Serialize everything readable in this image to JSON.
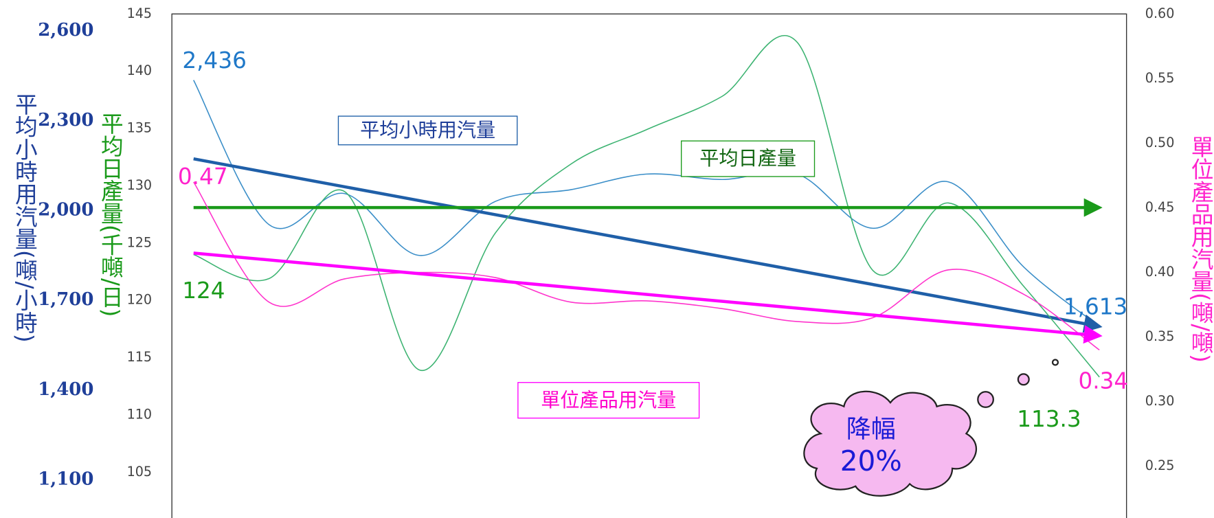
{
  "chart_data": {
    "type": "line",
    "categories": [
      null,
      null,
      null,
      null,
      null,
      null,
      null,
      null,
      null,
      null,
      null,
      null,
      null
    ],
    "ylabel": "平均小時用汽量(噸/小時)",
    "ylim": [
      973,
      2657
    ],
    "yticks": [
      {
        "value": 2600,
        "label": "2,600"
      },
      {
        "value": 2300,
        "label": "2,300"
      },
      {
        "value": 2000,
        "label": "2,000"
      },
      {
        "value": 1700,
        "label": "1,700"
      },
      {
        "value": 1400,
        "label": "1,400"
      },
      {
        "value": 1100,
        "label": "1,100"
      }
    ],
    "y3label": "平均日產量(千噸/日)",
    "y3lim": [
      101,
      145
    ],
    "y3ticks": [
      145,
      140,
      135,
      130,
      125,
      120,
      115,
      110,
      105
    ],
    "y2label": "單位產品用汽量(噸/噸)",
    "y2lim": [
      0.21,
      0.6
    ],
    "y2ticks": [
      {
        "value": 0.6,
        "label": "0.60"
      },
      0.55,
      {
        "value": 0.5,
        "label": "0.50"
      },
      0.45,
      {
        "value": 0.4,
        "label": "0.40"
      },
      0.35,
      {
        "value": 0.3,
        "label": "0.30"
      },
      0.25
    ],
    "series": [
      {
        "name": "平均小時用汽量",
        "axis": "y",
        "color": "#3a8ec8",
        "trend_color": "#1f5fa8",
        "values": [
          2436,
          1953,
          2057,
          1850,
          2031,
          2070,
          2122,
          2104,
          2122,
          1941,
          2096,
          1811,
          1613
        ],
        "value_labels": [
          "2,436",
          null,
          null,
          null,
          null,
          null,
          null,
          null,
          null,
          null,
          null,
          null,
          "1,613"
        ],
        "trend": [
          2173,
          1613
        ]
      },
      {
        "name": "平均日產量",
        "axis": "y3",
        "color": "#3cb371",
        "trend_color": "#1a9a1a",
        "values": [
          124,
          121.9,
          129.5,
          113.9,
          125.9,
          131.9,
          134.9,
          137.8,
          142.5,
          122.6,
          128.5,
          121.2,
          113.3
        ],
        "value_labels": [
          "124",
          null,
          null,
          null,
          null,
          null,
          null,
          null,
          null,
          null,
          null,
          null,
          "113.3"
        ],
        "trend": [
          128.1,
          128.1
        ]
      },
      {
        "name": "單位產品用汽量",
        "axis": "y2",
        "color": "#ff33cc",
        "trend_color": "#ff00ff",
        "values": [
          0.47,
          0.377,
          0.395,
          0.4,
          0.396,
          0.377,
          0.378,
          0.372,
          0.362,
          0.365,
          0.402,
          0.383,
          0.34
        ],
        "value_labels": [
          "0.47",
          null,
          null,
          null,
          null,
          null,
          null,
          null,
          null,
          null,
          null,
          null,
          "0.34"
        ],
        "trend": [
          0.415,
          0.351
        ]
      }
    ],
    "annotation": [
      "降幅",
      "20%"
    ]
  }
}
